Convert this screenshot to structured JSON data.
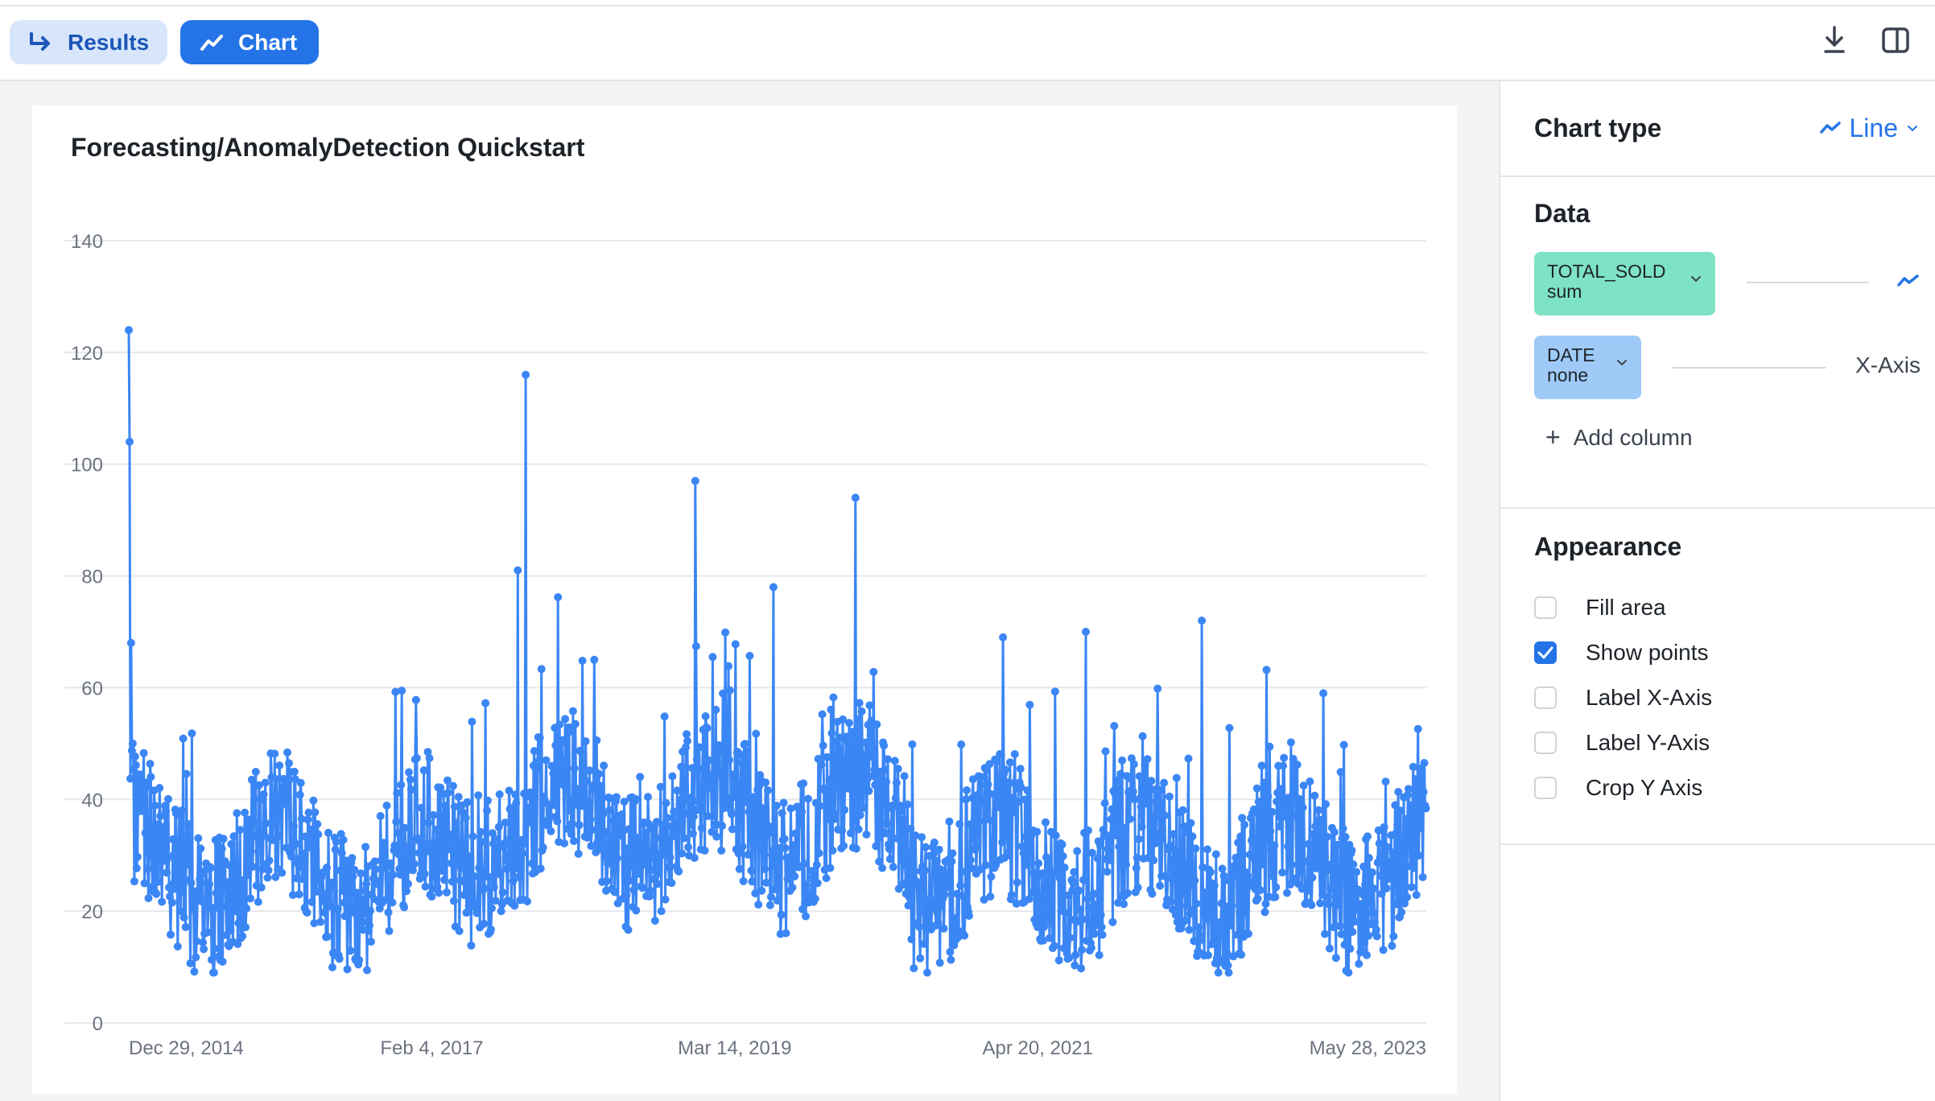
{
  "toolbar": {
    "results_label": "Results",
    "chart_label": "Chart",
    "download_icon": "download-icon",
    "split_icon": "split-panel-icon"
  },
  "colors": {
    "accent": "#2474e8",
    "series": "#3b86f5",
    "results_bg": "#d7e6fb",
    "measure_pill": "#7ee2c7",
    "dimension_pill": "#9fcaf8"
  },
  "chart_data": {
    "type": "line",
    "title": "Forecasting/AnomalyDetection Quickstart",
    "xlabel": "",
    "ylabel": "",
    "ylim": [
      0,
      140
    ],
    "yticks": [
      0,
      20,
      40,
      60,
      80,
      100,
      120,
      140
    ],
    "xtick_labels": [
      "Dec 29, 2014",
      "Feb 4, 2017",
      "Mar 14, 2019",
      "Apr 20, 2021",
      "May 28, 2023"
    ],
    "xtick_dates": [
      "2014-12-29",
      "2017-02-04",
      "2019-03-14",
      "2021-04-20",
      "2023-05-28"
    ],
    "x_range": [
      "2014-12-29",
      "2023-12-31"
    ],
    "show_points": true,
    "grid": true,
    "series": [
      {
        "name": "TOTAL_SOLD",
        "aggregation": "sum",
        "approx_daily": true,
        "notable_points": [
          {
            "x": "2014-12-29",
            "y": 124
          },
          {
            "x": "2014-12-31",
            "y": 104
          },
          {
            "x": "2015-01-04",
            "y": 68
          },
          {
            "x": "2015-01-08",
            "y": 50
          },
          {
            "x": "2017-09-10",
            "y": 81
          },
          {
            "x": "2017-10-01",
            "y": 116
          },
          {
            "x": "2018-12-05",
            "y": 97
          },
          {
            "x": "2019-06-20",
            "y": 78
          },
          {
            "x": "2020-01-15",
            "y": 94
          },
          {
            "x": "2021-08-20",
            "y": 70
          },
          {
            "x": "2022-06-10",
            "y": 72
          },
          {
            "x": "2023-04-15",
            "y": 59
          }
        ]
      }
    ]
  },
  "panel": {
    "chart_type_label": "Chart type",
    "chart_type_value": "Line",
    "data_heading": "Data",
    "measure": {
      "name": "TOTAL_SOLD",
      "agg": "sum"
    },
    "dimension": {
      "name": "DATE",
      "agg": "none",
      "role": "X-Axis"
    },
    "add_column": "Add column",
    "appearance_heading": "Appearance",
    "options": [
      {
        "label": "Fill area",
        "checked": false
      },
      {
        "label": "Show points",
        "checked": true
      },
      {
        "label": "Label X-Axis",
        "checked": false
      },
      {
        "label": "Label Y-Axis",
        "checked": false
      },
      {
        "label": "Crop Y Axis",
        "checked": false
      }
    ]
  }
}
